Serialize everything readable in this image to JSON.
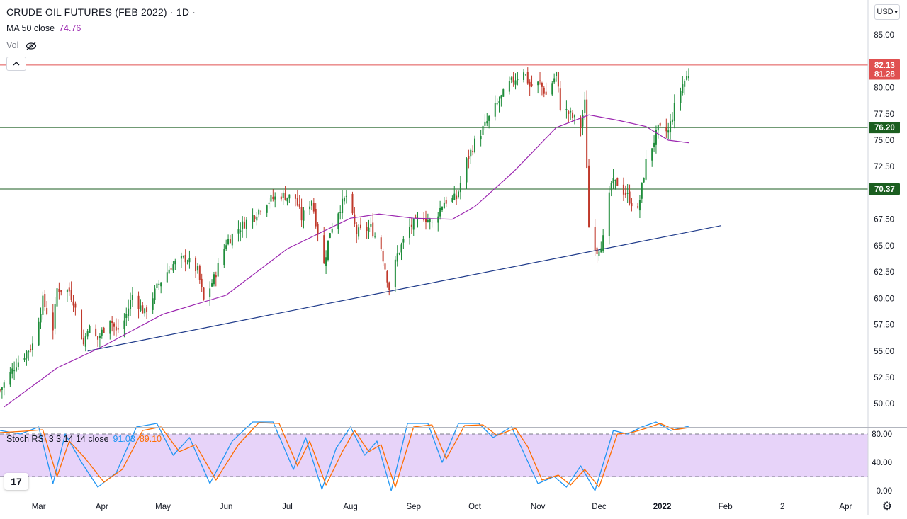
{
  "header": {
    "symbol_title": "CRUDE OIL FUTURES (FEB 2022) · 1D ·",
    "ma_label": "MA 50 close",
    "ma_value": "74.76",
    "vol_label": "Vol",
    "vol_icon": "eye-crossed-icon",
    "currency": "USD",
    "collapse_icon": "chevron-up-icon",
    "logo_text": "17",
    "settings_icon": "gear-icon"
  },
  "colors": {
    "up": "#26a69a",
    "down": "#ef5350",
    "candle_up": "#1e8c3a",
    "candle_down": "#c0392b",
    "ma": "#9c27b0",
    "trendline": "#1e3a8a",
    "resistance": "#e05050",
    "support": "#1b5e20",
    "stoch_k": "#2196f3",
    "stoch_d": "#ff6d00",
    "stoch_band": "#e1c8f7"
  },
  "chart_data": [
    {
      "type": "candlestick",
      "title": "CRUDE OIL FUTURES (FEB 2022) · 1D ·",
      "x_axis": {
        "type": "date",
        "tick_labels": [
          "Mar",
          "Apr",
          "May",
          "Jun",
          "Jul",
          "Aug",
          "Sep",
          "Oct",
          "Nov",
          "Dec",
          "2022",
          "Feb",
          "2",
          "Apr"
        ],
        "tick_dates": [
          "2021-03-01",
          "2021-04-01",
          "2021-05-01",
          "2021-06-01",
          "2021-07-01",
          "2021-08-01",
          "2021-09-01",
          "2021-10-01",
          "2021-11-01",
          "2021-12-01",
          "2022-01-01",
          "2022-02-01",
          "2022-03-01",
          "2022-04-01"
        ],
        "range": [
          "2021-02-10",
          "2022-04-12"
        ]
      },
      "y_axis": {
        "range": [
          47.8,
          88.3
        ],
        "tick_labels": [
          "50.00",
          "52.50",
          "55.00",
          "57.50",
          "60.00",
          "62.50",
          "65.00",
          "67.50",
          "72.50",
          "75.00",
          "77.50",
          "80.00",
          "85.00"
        ],
        "ticks": [
          50,
          52.5,
          55,
          57.5,
          60,
          62.5,
          65,
          67.5,
          72.5,
          75,
          77.5,
          80,
          85
        ]
      },
      "price_labels": [
        {
          "label": "82.13",
          "value": 82.13,
          "kind": "resistance"
        },
        {
          "label": "81.28",
          "value": 81.28,
          "kind": "last-price"
        },
        {
          "label": "76.20",
          "value": 76.2,
          "kind": "support"
        },
        {
          "label": "70.37",
          "value": 70.37,
          "kind": "support"
        }
      ],
      "horizontal_lines": [
        {
          "value": 82.13,
          "style": "solid",
          "color": "resistance"
        },
        {
          "value": 81.28,
          "style": "dotted",
          "color": "resistance"
        },
        {
          "value": 76.2,
          "style": "solid",
          "color": "support"
        },
        {
          "value": 70.37,
          "style": "solid",
          "color": "support"
        }
      ],
      "trendline": {
        "points": [
          [
            "2021-03-25",
            55.0
          ],
          [
            "2022-01-30",
            66.9
          ]
        ]
      },
      "close_path": [
        [
          "2021-02-10",
          51.3
        ],
        [
          "2021-02-18",
          53.8
        ],
        [
          "2021-02-26",
          55.6
        ],
        [
          "2021-03-03",
          59.8
        ],
        [
          "2021-03-08",
          57.2
        ],
        [
          "2021-03-10",
          60.9
        ],
        [
          "2021-03-16",
          60.7
        ],
        [
          "2021-03-18",
          59.8
        ],
        [
          "2021-03-23",
          55.6
        ],
        [
          "2021-03-25",
          57.3
        ],
        [
          "2021-03-30",
          56.1
        ],
        [
          "2021-04-05",
          58.2
        ],
        [
          "2021-04-08",
          56.8
        ],
        [
          "2021-04-12",
          57.9
        ],
        [
          "2021-04-16",
          60.3
        ],
        [
          "2021-04-22",
          58.6
        ],
        [
          "2021-04-29",
          61.4
        ],
        [
          "2021-05-05",
          63.1
        ],
        [
          "2021-05-12",
          63.8
        ],
        [
          "2021-05-18",
          62.6
        ],
        [
          "2021-05-21",
          59.8
        ],
        [
          "2021-05-26",
          61.9
        ],
        [
          "2021-06-01",
          65.3
        ],
        [
          "2021-06-07",
          66.6
        ],
        [
          "2021-06-15",
          68.0
        ],
        [
          "2021-06-21",
          69.2
        ],
        [
          "2021-06-28",
          69.8
        ],
        [
          "2021-07-05",
          69.5
        ],
        [
          "2021-07-08",
          67.6
        ],
        [
          "2021-07-13",
          69.4
        ],
        [
          "2021-07-19",
          63.2
        ],
        [
          "2021-07-22",
          66.4
        ],
        [
          "2021-07-26",
          68.3
        ],
        [
          "2021-07-30",
          69.7
        ],
        [
          "2021-08-04",
          66.2
        ],
        [
          "2021-08-11",
          66.7
        ],
        [
          "2021-08-16",
          64.8
        ],
        [
          "2021-08-20",
          61.0
        ],
        [
          "2021-08-24",
          64.1
        ],
        [
          "2021-08-30",
          66.7
        ],
        [
          "2021-09-06",
          67.8
        ],
        [
          "2021-09-10",
          67.1
        ],
        [
          "2021-09-16",
          69.2
        ],
        [
          "2021-09-22",
          69.5
        ],
        [
          "2021-09-27",
          73.0
        ],
        [
          "2021-10-01",
          74.8
        ],
        [
          "2021-10-06",
          76.4
        ],
        [
          "2021-10-11",
          78.1
        ],
        [
          "2021-10-18",
          80.3
        ],
        [
          "2021-10-25",
          81.7
        ],
        [
          "2021-10-28",
          80.1
        ],
        [
          "2021-11-02",
          80.4
        ],
        [
          "2021-11-05",
          79.3
        ],
        [
          "2021-11-10",
          81.3
        ],
        [
          "2021-11-12",
          78.2
        ],
        [
          "2021-11-17",
          77.4
        ],
        [
          "2021-11-22",
          76.3
        ],
        [
          "2021-11-24",
          78.5
        ],
        [
          "2021-11-26",
          66.8
        ],
        [
          "2021-11-30",
          64.5
        ],
        [
          "2021-12-03",
          65.6
        ],
        [
          "2021-12-07",
          70.9
        ],
        [
          "2021-12-10",
          70.9
        ],
        [
          "2021-12-15",
          69.7
        ],
        [
          "2021-12-20",
          68.2
        ],
        [
          "2021-12-24",
          72.9
        ],
        [
          "2021-12-30",
          76.0
        ],
        [
          "2022-01-04",
          75.8
        ],
        [
          "2022-01-07",
          78.1
        ],
        [
          "2022-01-11",
          80.3
        ],
        [
          "2022-01-14",
          81.3
        ]
      ],
      "ma_50": [
        [
          "2021-02-12",
          49.7
        ],
        [
          "2021-03-10",
          53.4
        ],
        [
          "2021-04-01",
          55.4
        ],
        [
          "2021-05-01",
          58.5
        ],
        [
          "2021-06-01",
          60.3
        ],
        [
          "2021-07-01",
          64.7
        ],
        [
          "2021-08-01",
          67.6
        ],
        [
          "2021-08-15",
          68.0
        ],
        [
          "2021-09-01",
          67.6
        ],
        [
          "2021-09-20",
          67.5
        ],
        [
          "2021-10-01",
          68.7
        ],
        [
          "2021-10-20",
          72.0
        ],
        [
          "2021-11-10",
          76.2
        ],
        [
          "2021-11-26",
          77.4
        ],
        [
          "2021-12-10",
          76.9
        ],
        [
          "2021-12-24",
          76.3
        ],
        [
          "2022-01-04",
          75.0
        ],
        [
          "2022-01-14",
          74.76
        ]
      ]
    },
    {
      "type": "line",
      "title": "Stoch RSI 3 3 14 14 close",
      "series": [
        {
          "name": "K",
          "last_value": "91.03",
          "role": "stoch_k",
          "values": [
            [
              "2021-02-10",
              85
            ],
            [
              "2021-02-20",
              80
            ],
            [
              "2021-03-01",
              90
            ],
            [
              "2021-03-08",
              10
            ],
            [
              "2021-03-14",
              80
            ],
            [
              "2021-03-22",
              40
            ],
            [
              "2021-03-30",
              5
            ],
            [
              "2021-04-08",
              25
            ],
            [
              "2021-04-18",
              90
            ],
            [
              "2021-04-28",
              95
            ],
            [
              "2021-05-06",
              50
            ],
            [
              "2021-05-14",
              75
            ],
            [
              "2021-05-24",
              10
            ],
            [
              "2021-06-04",
              70
            ],
            [
              "2021-06-14",
              97
            ],
            [
              "2021-06-24",
              97
            ],
            [
              "2021-07-04",
              30
            ],
            [
              "2021-07-10",
              75
            ],
            [
              "2021-07-18",
              2
            ],
            [
              "2021-07-25",
              60
            ],
            [
              "2021-08-01",
              90
            ],
            [
              "2021-08-08",
              50
            ],
            [
              "2021-08-14",
              70
            ],
            [
              "2021-08-21",
              0
            ],
            [
              "2021-08-29",
              95
            ],
            [
              "2021-09-08",
              95
            ],
            [
              "2021-09-15",
              40
            ],
            [
              "2021-09-23",
              95
            ],
            [
              "2021-10-03",
              95
            ],
            [
              "2021-10-10",
              75
            ],
            [
              "2021-10-19",
              90
            ],
            [
              "2021-10-24",
              60
            ],
            [
              "2021-11-01",
              10
            ],
            [
              "2021-11-09",
              20
            ],
            [
              "2021-11-15",
              5
            ],
            [
              "2021-11-22",
              35
            ],
            [
              "2021-11-29",
              0
            ],
            [
              "2021-12-08",
              85
            ],
            [
              "2021-12-15",
              80
            ],
            [
              "2021-12-22",
              90
            ],
            [
              "2021-12-29",
              97
            ],
            [
              "2022-01-05",
              85
            ],
            [
              "2022-01-14",
              91
            ]
          ]
        },
        {
          "name": "D",
          "last_value": "89.10",
          "role": "stoch_d",
          "values": [
            [
              "2021-02-10",
              82
            ],
            [
              "2021-02-22",
              84
            ],
            [
              "2021-03-03",
              86
            ],
            [
              "2021-03-10",
              20
            ],
            [
              "2021-03-16",
              70
            ],
            [
              "2021-03-24",
              45
            ],
            [
              "2021-04-02",
              12
            ],
            [
              "2021-04-11",
              30
            ],
            [
              "2021-04-21",
              85
            ],
            [
              "2021-04-30",
              90
            ],
            [
              "2021-05-09",
              55
            ],
            [
              "2021-05-17",
              65
            ],
            [
              "2021-05-27",
              15
            ],
            [
              "2021-06-07",
              65
            ],
            [
              "2021-06-17",
              96
            ],
            [
              "2021-06-27",
              95
            ],
            [
              "2021-07-06",
              35
            ],
            [
              "2021-07-12",
              70
            ],
            [
              "2021-07-20",
              8
            ],
            [
              "2021-07-28",
              55
            ],
            [
              "2021-08-03",
              85
            ],
            [
              "2021-08-10",
              55
            ],
            [
              "2021-08-16",
              65
            ],
            [
              "2021-08-23",
              5
            ],
            [
              "2021-09-01",
              90
            ],
            [
              "2021-09-10",
              93
            ],
            [
              "2021-09-17",
              45
            ],
            [
              "2021-09-26",
              92
            ],
            [
              "2021-10-05",
              93
            ],
            [
              "2021-10-12",
              78
            ],
            [
              "2021-10-21",
              88
            ],
            [
              "2021-10-27",
              62
            ],
            [
              "2021-11-03",
              15
            ],
            [
              "2021-11-11",
              22
            ],
            [
              "2021-11-17",
              8
            ],
            [
              "2021-11-24",
              30
            ],
            [
              "2021-12-01",
              5
            ],
            [
              "2021-12-10",
              80
            ],
            [
              "2021-12-17",
              82
            ],
            [
              "2021-12-24",
              88
            ],
            [
              "2021-12-31",
              95
            ],
            [
              "2022-01-07",
              86
            ],
            [
              "2022-01-14",
              89
            ]
          ]
        }
      ],
      "y_axis": {
        "range": [
          0,
          100
        ],
        "tick_labels": [
          "80.00",
          "40.00",
          "0.00"
        ],
        "ticks": [
          80,
          40,
          0
        ]
      },
      "bands": {
        "upper": 80,
        "lower": 20
      }
    }
  ]
}
